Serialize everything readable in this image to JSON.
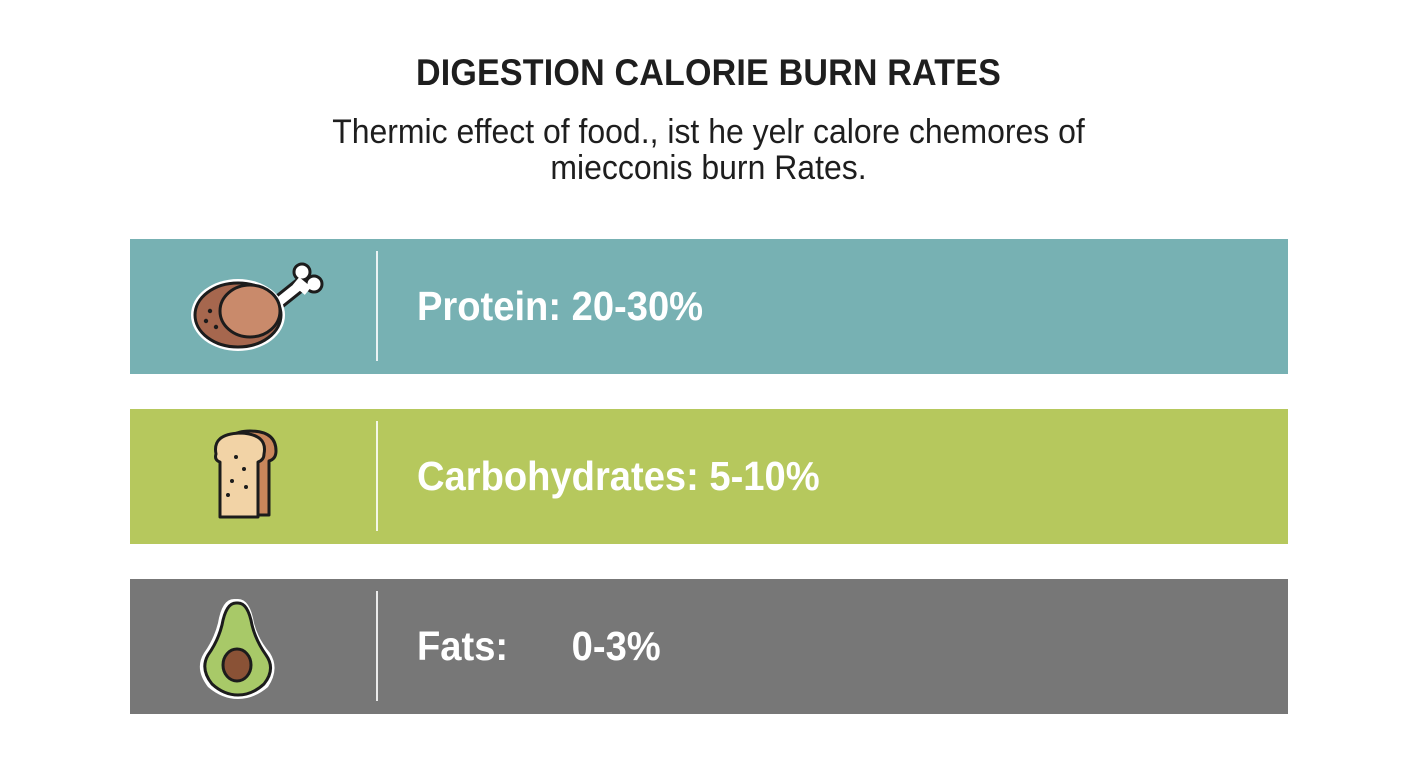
{
  "header": {
    "title": "DIGESTION CALORIE BURN RATES",
    "subtitle_line1": "Thermic effect of food., ist he yelr calore chemores of",
    "subtitle_line2": "miecconis burn Rates."
  },
  "rows": [
    {
      "label": "Protein: 20-30%",
      "icon": "chicken-drumstick-icon",
      "color": "#77b1b3"
    },
    {
      "label": "Carbohydrates: 5-10%",
      "icon": "bread-slice-icon",
      "color": "#b6c85d"
    },
    {
      "label": "Fats:      0-3%",
      "icon": "avocado-icon",
      "color": "#777777"
    }
  ]
}
